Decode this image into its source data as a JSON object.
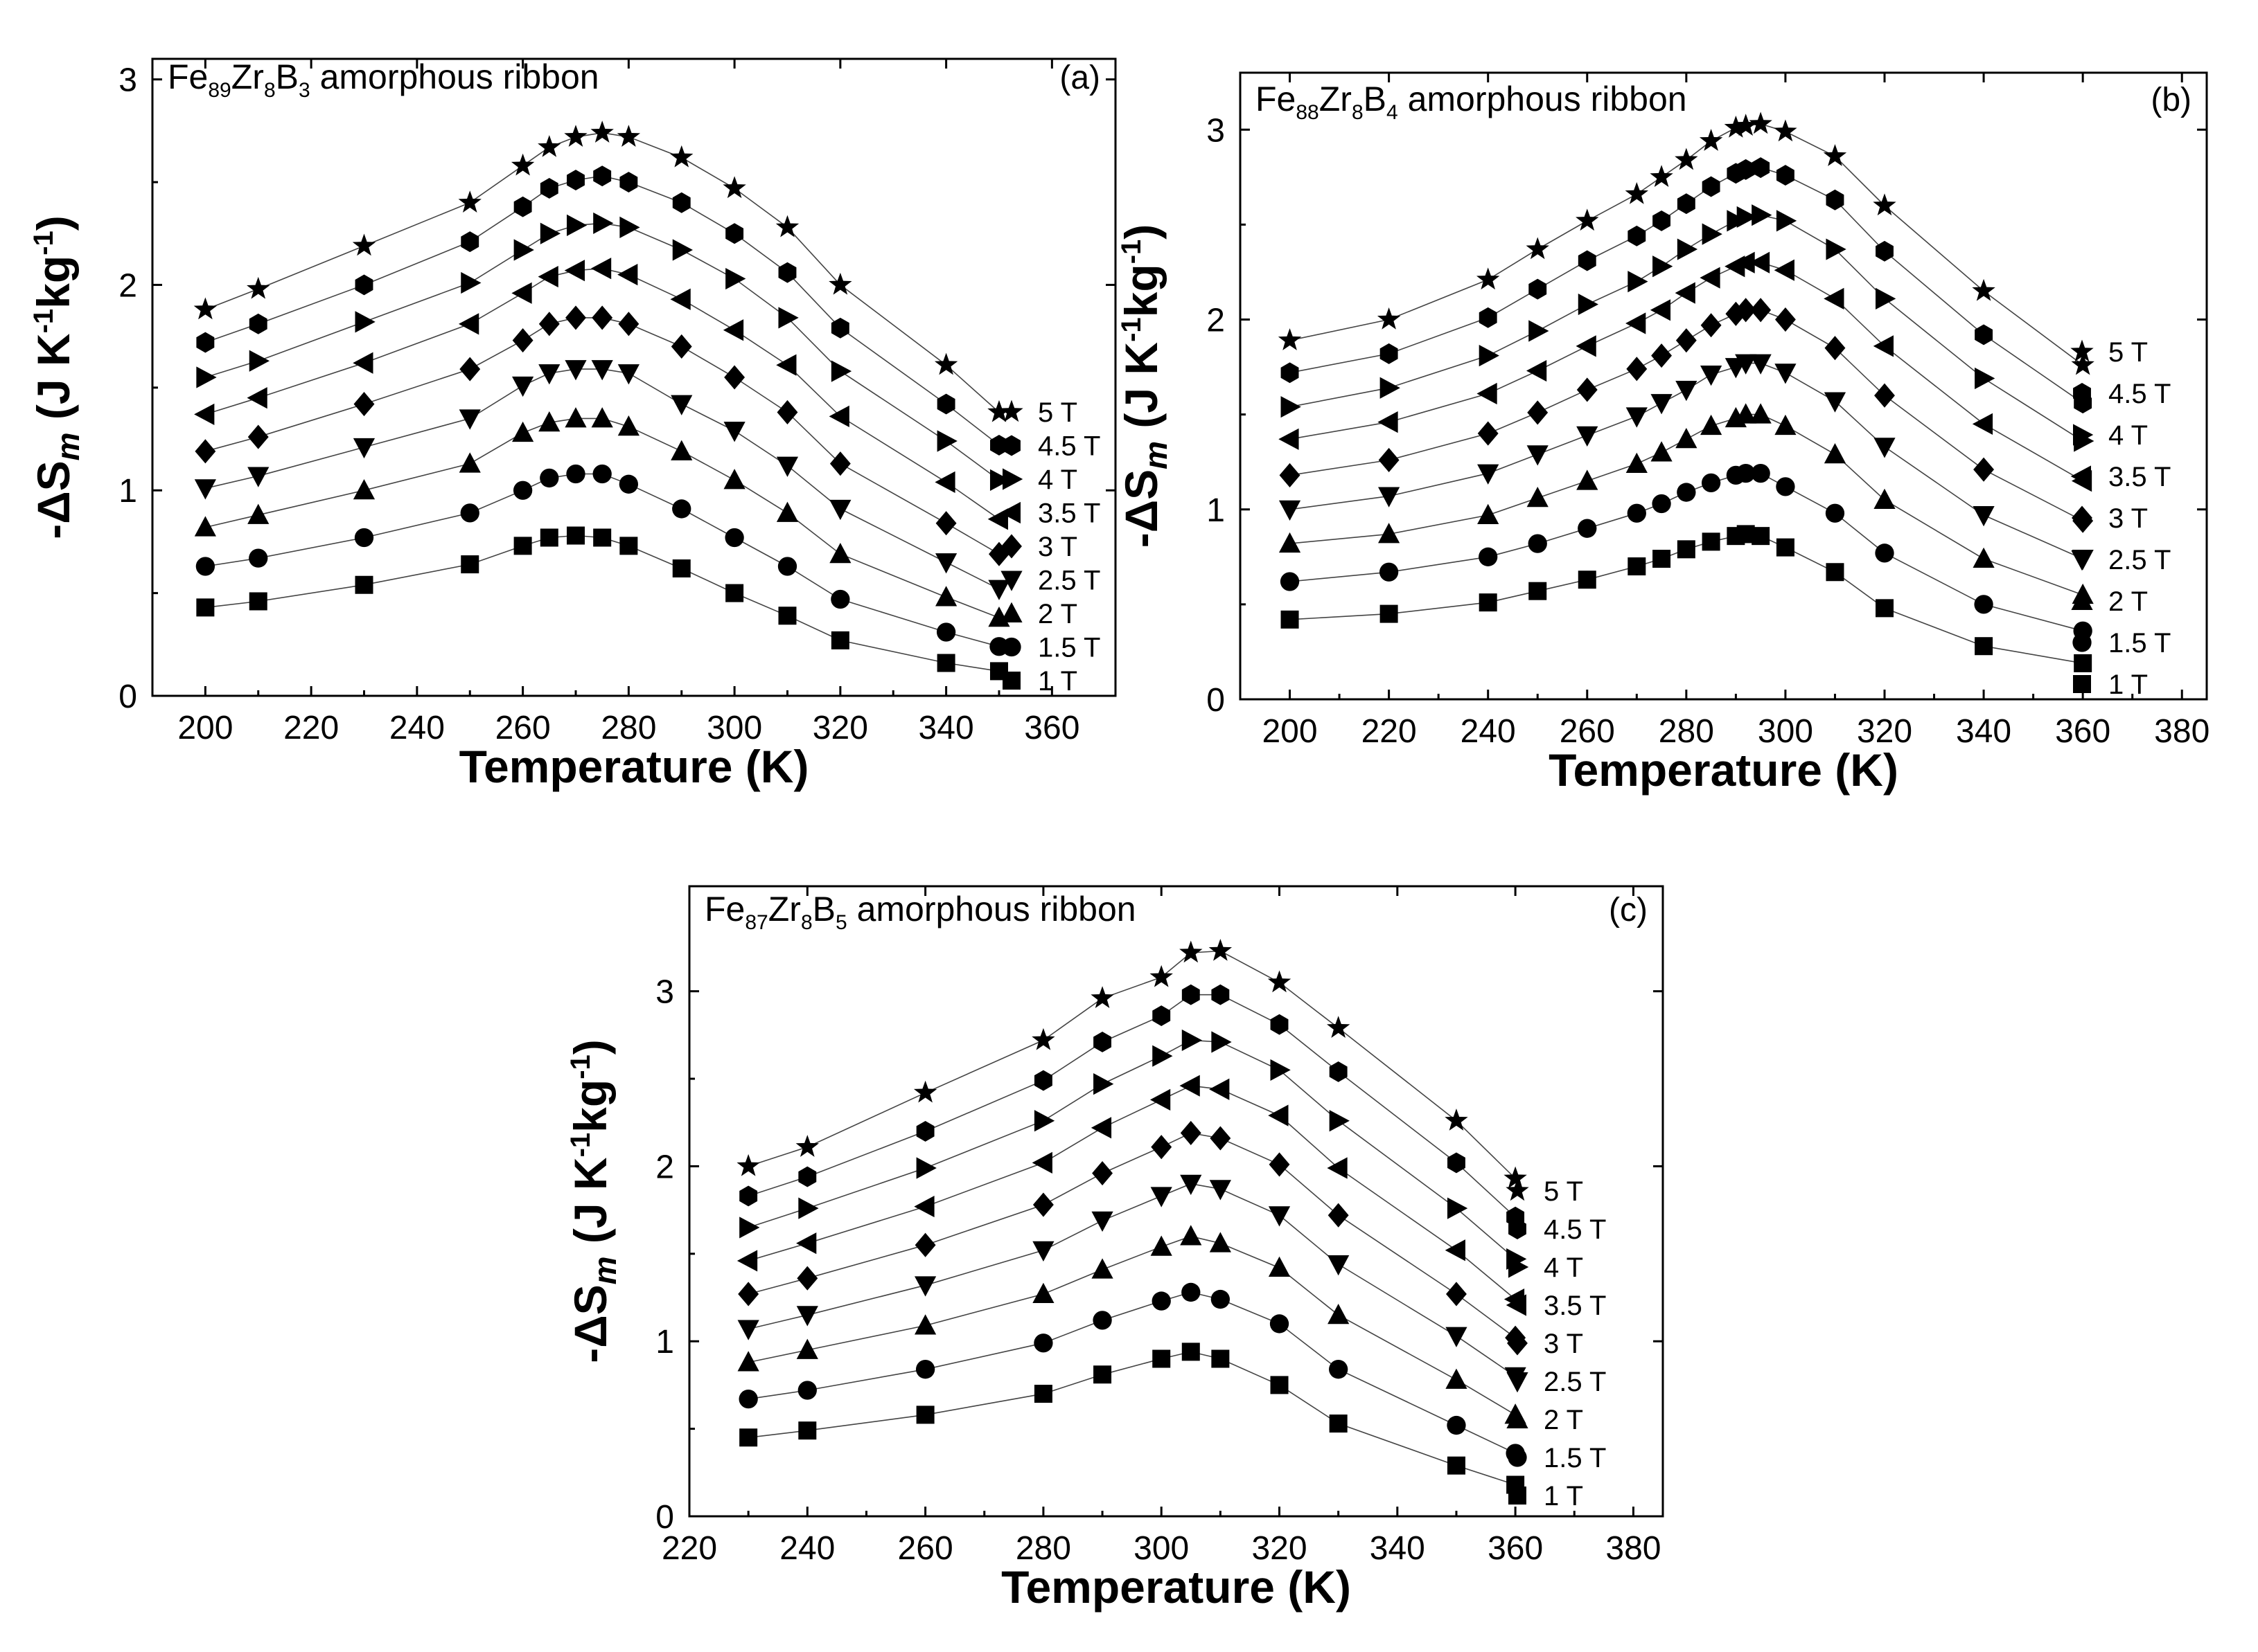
{
  "chart_data": [
    {
      "type": "scatter",
      "panel": "(a)",
      "title": {
        "prefix": "Fe",
        "fe": "89",
        "zr": "Zr",
        "zrn": "8",
        "b": "B",
        "bn": "3",
        "suffix": " amorphous ribbon"
      },
      "xlabel": "Temperature (K)",
      "ylabel": "-ΔSm (J K-1kg-1)",
      "xlim": [
        190,
        372
      ],
      "ylim": [
        0,
        3.1
      ],
      "xticks": [
        200,
        220,
        240,
        260,
        280,
        300,
        320,
        340,
        360
      ],
      "yticks": [
        0,
        1,
        2,
        3
      ],
      "x": [
        200,
        210,
        230,
        250,
        260,
        265,
        270,
        275,
        280,
        290,
        300,
        310,
        320,
        340,
        350
      ],
      "series": [
        {
          "name": "1 T",
          "values": [
            0.43,
            0.46,
            0.54,
            0.64,
            0.73,
            0.77,
            0.78,
            0.77,
            0.73,
            0.62,
            0.5,
            0.39,
            0.27,
            0.16,
            0.12
          ]
        },
        {
          "name": "1.5 T",
          "values": [
            0.63,
            0.67,
            0.77,
            0.89,
            1.0,
            1.06,
            1.08,
            1.08,
            1.03,
            0.91,
            0.77,
            0.63,
            0.47,
            0.31,
            0.24
          ]
        },
        {
          "name": "2 T",
          "values": [
            0.82,
            0.88,
            1.0,
            1.13,
            1.28,
            1.33,
            1.35,
            1.35,
            1.31,
            1.19,
            1.05,
            0.89,
            0.69,
            0.48,
            0.38
          ]
        },
        {
          "name": "2.5 T",
          "values": [
            1.01,
            1.07,
            1.21,
            1.35,
            1.51,
            1.57,
            1.59,
            1.59,
            1.57,
            1.42,
            1.29,
            1.12,
            0.91,
            0.65,
            0.52
          ]
        },
        {
          "name": "3 T",
          "values": [
            1.19,
            1.26,
            1.42,
            1.59,
            1.73,
            1.81,
            1.84,
            1.84,
            1.81,
            1.7,
            1.55,
            1.38,
            1.13,
            0.84,
            0.69
          ]
        },
        {
          "name": "3.5 T",
          "values": [
            1.37,
            1.45,
            1.62,
            1.81,
            1.96,
            2.04,
            2.07,
            2.08,
            2.05,
            1.93,
            1.78,
            1.61,
            1.36,
            1.04,
            0.86
          ]
        },
        {
          "name": "4 T",
          "values": [
            1.55,
            1.63,
            1.82,
            2.01,
            2.17,
            2.25,
            2.29,
            2.3,
            2.28,
            2.17,
            2.03,
            1.84,
            1.58,
            1.24,
            1.05
          ]
        },
        {
          "name": "4.5 T",
          "values": [
            1.72,
            1.81,
            2.0,
            2.21,
            2.38,
            2.47,
            2.51,
            2.53,
            2.5,
            2.4,
            2.25,
            2.06,
            1.79,
            1.42,
            1.22
          ]
        },
        {
          "name": "5 T",
          "values": [
            1.88,
            1.98,
            2.19,
            2.4,
            2.58,
            2.67,
            2.72,
            2.74,
            2.72,
            2.62,
            2.47,
            2.28,
            2.0,
            1.61,
            1.38
          ]
        }
      ]
    },
    {
      "type": "scatter",
      "panel": "(b)",
      "title": {
        "prefix": "Fe",
        "fe": "88",
        "zr": "Zr",
        "zrn": "8",
        "b": "B",
        "bn": "4",
        "suffix": " amorphous ribbon"
      },
      "xlabel": "Temperature (K)",
      "ylabel": "-ΔSm (J K-1kg-1)",
      "xlim": [
        190,
        385
      ],
      "ylim": [
        0,
        3.3
      ],
      "xticks": [
        200,
        220,
        240,
        260,
        280,
        300,
        320,
        340,
        360,
        380
      ],
      "yticks": [
        0,
        1,
        2,
        3
      ],
      "x": [
        200,
        220,
        240,
        250,
        260,
        270,
        275,
        280,
        285,
        290,
        292,
        295,
        300,
        310,
        320,
        340,
        360
      ],
      "series": [
        {
          "name": "1 T",
          "values": [
            0.42,
            0.45,
            0.51,
            0.57,
            0.63,
            0.7,
            0.74,
            0.79,
            0.83,
            0.86,
            0.87,
            0.86,
            0.8,
            0.67,
            0.48,
            0.28,
            0.19
          ]
        },
        {
          "name": "1.5 T",
          "values": [
            0.62,
            0.67,
            0.75,
            0.82,
            0.9,
            0.98,
            1.03,
            1.09,
            1.14,
            1.18,
            1.19,
            1.19,
            1.12,
            0.98,
            0.77,
            0.5,
            0.36
          ]
        },
        {
          "name": "2 T",
          "values": [
            0.82,
            0.87,
            0.97,
            1.06,
            1.15,
            1.24,
            1.3,
            1.37,
            1.44,
            1.48,
            1.5,
            1.5,
            1.44,
            1.29,
            1.05,
            0.74,
            0.55
          ]
        },
        {
          "name": "2.5 T",
          "values": [
            1.0,
            1.07,
            1.19,
            1.29,
            1.39,
            1.49,
            1.56,
            1.63,
            1.71,
            1.75,
            1.77,
            1.77,
            1.72,
            1.57,
            1.33,
            0.97,
            0.74
          ]
        },
        {
          "name": "3 T",
          "values": [
            1.18,
            1.26,
            1.4,
            1.51,
            1.63,
            1.74,
            1.81,
            1.89,
            1.97,
            2.03,
            2.05,
            2.05,
            2.0,
            1.85,
            1.6,
            1.21,
            0.94
          ]
        },
        {
          "name": "3.5 T",
          "values": [
            1.37,
            1.46,
            1.61,
            1.73,
            1.86,
            1.98,
            2.05,
            2.14,
            2.22,
            2.28,
            2.3,
            2.3,
            2.26,
            2.11,
            1.86,
            1.45,
            1.15
          ]
        },
        {
          "name": "4 T",
          "values": [
            1.54,
            1.64,
            1.81,
            1.94,
            2.08,
            2.2,
            2.28,
            2.37,
            2.45,
            2.52,
            2.54,
            2.55,
            2.52,
            2.37,
            2.11,
            1.69,
            1.36
          ]
        },
        {
          "name": "4.5 T",
          "values": [
            1.72,
            1.82,
            2.01,
            2.16,
            2.31,
            2.44,
            2.52,
            2.61,
            2.7,
            2.77,
            2.79,
            2.8,
            2.76,
            2.63,
            2.36,
            1.92,
            1.56
          ]
        },
        {
          "name": "5 T",
          "values": [
            1.89,
            2.0,
            2.21,
            2.37,
            2.52,
            2.66,
            2.75,
            2.84,
            2.94,
            3.01,
            3.02,
            3.03,
            2.99,
            2.86,
            2.6,
            2.15,
            1.76
          ]
        }
      ]
    },
    {
      "type": "scatter",
      "panel": "(c)",
      "title": {
        "prefix": "Fe",
        "fe": "87",
        "zr": "Zr",
        "zrn": "8",
        "b": "B",
        "bn": "5",
        "suffix": " amorphous ribbon"
      },
      "xlabel": "Temperature (K)",
      "ylabel": "-ΔSm (J K-1kg-1)",
      "xlim": [
        220,
        385
      ],
      "ylim": [
        0,
        3.6
      ],
      "xticks": [
        220,
        240,
        260,
        280,
        300,
        320,
        340,
        360,
        380
      ],
      "yticks": [
        0,
        1,
        2,
        3
      ],
      "x": [
        230,
        240,
        260,
        280,
        290,
        300,
        305,
        310,
        320,
        330,
        350,
        360
      ],
      "series": [
        {
          "name": "1 T",
          "values": [
            0.45,
            0.49,
            0.58,
            0.7,
            0.81,
            0.9,
            0.94,
            0.9,
            0.75,
            0.53,
            0.29,
            0.18
          ]
        },
        {
          "name": "1.5 T",
          "values": [
            0.67,
            0.72,
            0.84,
            0.99,
            1.12,
            1.23,
            1.28,
            1.24,
            1.1,
            0.84,
            0.52,
            0.36
          ]
        },
        {
          "name": "2 T",
          "values": [
            0.88,
            0.95,
            1.09,
            1.27,
            1.41,
            1.54,
            1.6,
            1.56,
            1.42,
            1.15,
            0.78,
            0.58
          ]
        },
        {
          "name": "2.5 T",
          "values": [
            1.07,
            1.15,
            1.32,
            1.52,
            1.69,
            1.83,
            1.9,
            1.87,
            1.72,
            1.44,
            1.03,
            0.8
          ]
        },
        {
          "name": "3 T",
          "values": [
            1.27,
            1.36,
            1.55,
            1.78,
            1.96,
            2.11,
            2.19,
            2.16,
            2.01,
            1.72,
            1.27,
            1.02
          ]
        },
        {
          "name": "3.5 T",
          "values": [
            1.46,
            1.56,
            1.77,
            2.02,
            2.22,
            2.38,
            2.46,
            2.44,
            2.29,
            1.99,
            1.52,
            1.24
          ]
        },
        {
          "name": "4 T",
          "values": [
            1.65,
            1.76,
            1.99,
            2.26,
            2.47,
            2.63,
            2.72,
            2.71,
            2.55,
            2.26,
            1.76,
            1.47
          ]
        },
        {
          "name": "4.5 T",
          "values": [
            1.83,
            1.94,
            2.2,
            2.49,
            2.71,
            2.86,
            2.98,
            2.98,
            2.81,
            2.54,
            2.02,
            1.71
          ]
        },
        {
          "name": "5 T",
          "values": [
            2.0,
            2.11,
            2.42,
            2.72,
            2.96,
            3.08,
            3.22,
            3.23,
            3.05,
            2.79,
            2.26,
            1.93
          ]
        }
      ]
    }
  ]
}
